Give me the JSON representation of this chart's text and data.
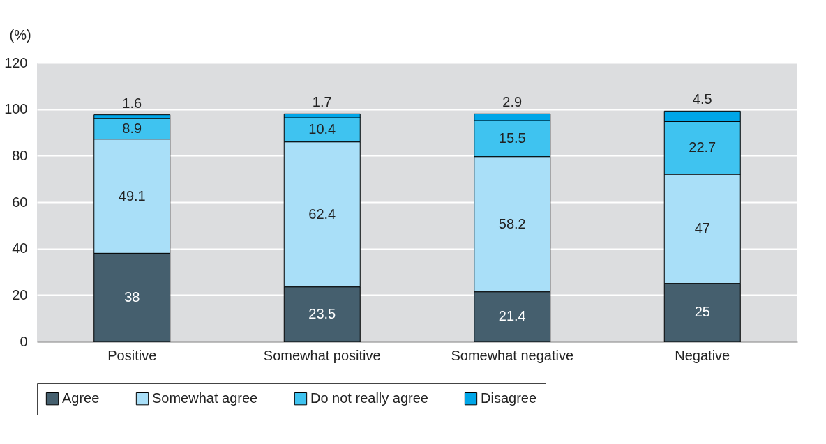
{
  "chart_data": {
    "type": "bar",
    "stacked": true,
    "ylabel": "(%)",
    "categories": [
      "Positive",
      "Somewhat positive",
      "Somewhat negative",
      "Negative"
    ],
    "series": [
      {
        "name": "Agree",
        "color": "#455f6e",
        "values": [
          38,
          23.5,
          21.4,
          25
        ]
      },
      {
        "name": "Somewhat agree",
        "color": "#a9dff8",
        "values": [
          49.1,
          62.4,
          58.2,
          47
        ]
      },
      {
        "name": "Do not really agree",
        "color": "#3fc3f0",
        "values": [
          8.9,
          10.4,
          15.5,
          22.7
        ]
      },
      {
        "name": "Disagree",
        "color": "#00a6e8",
        "values": [
          1.6,
          1.7,
          2.9,
          4.5
        ]
      }
    ],
    "ylim": [
      0,
      120
    ],
    "yticks": [
      0,
      20,
      40,
      60,
      80,
      100,
      120
    ],
    "grid": "y",
    "legend": "bottom",
    "data_labels": true
  }
}
